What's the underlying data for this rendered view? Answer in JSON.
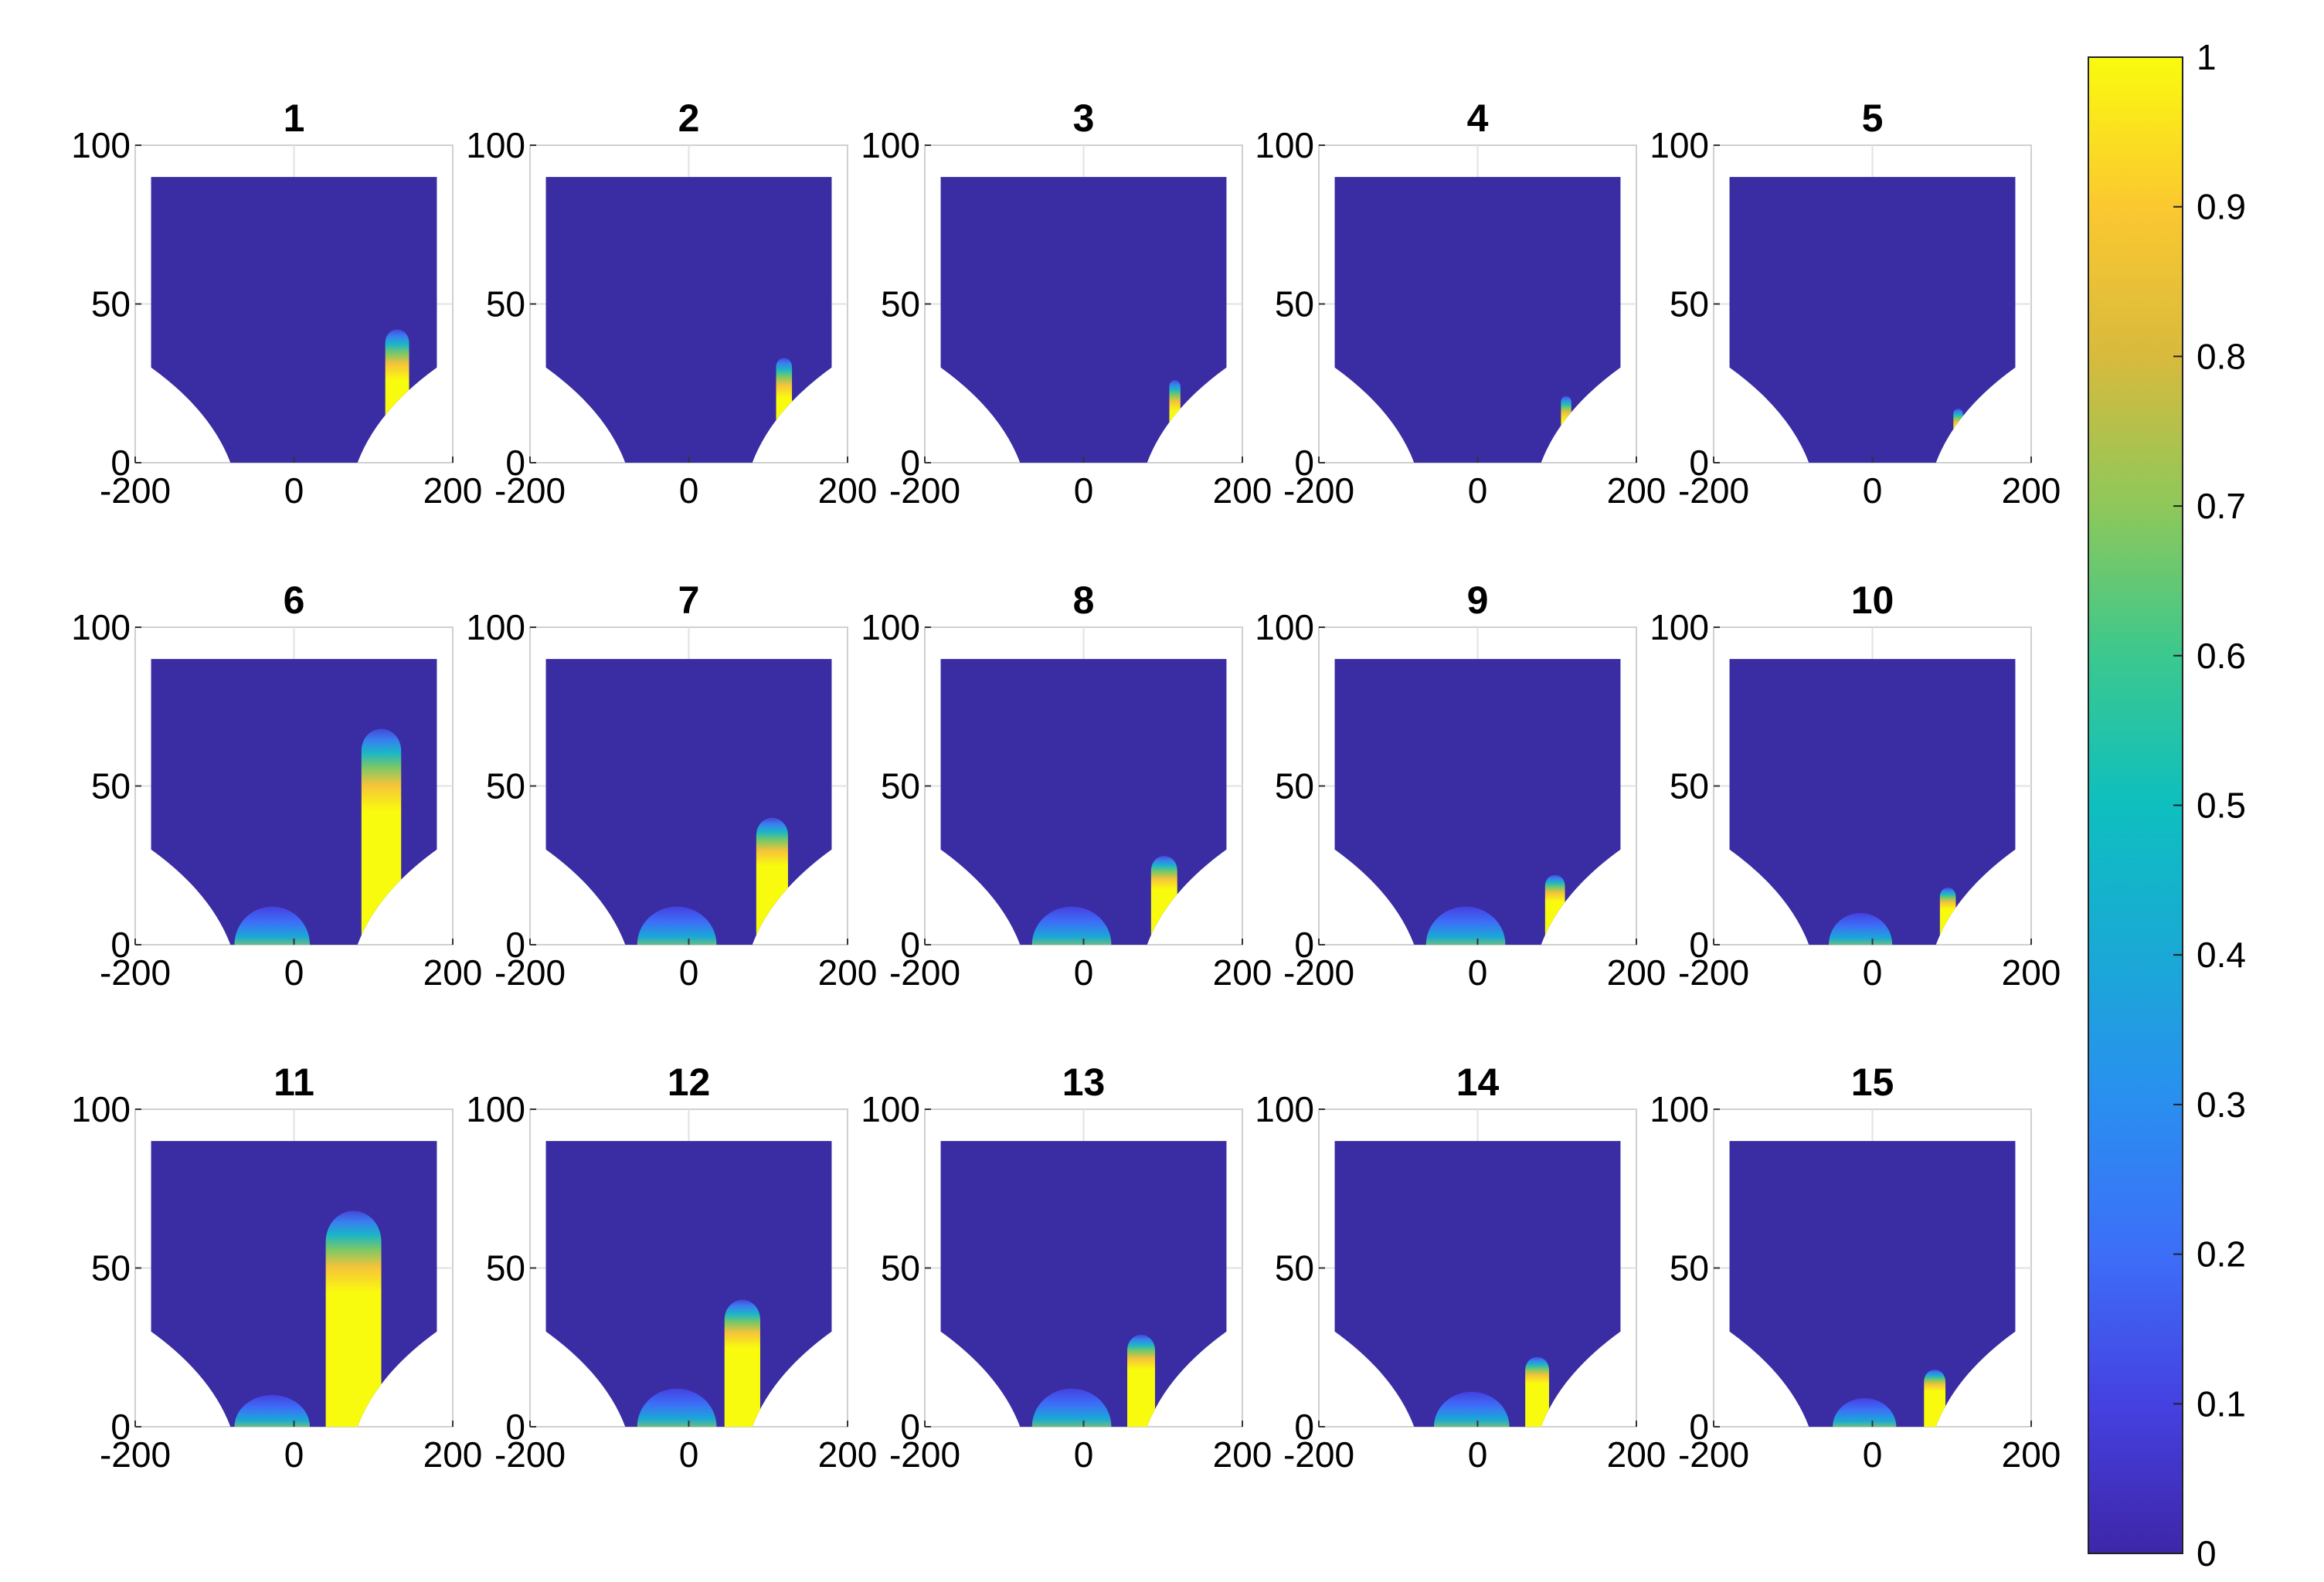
{
  "chart_data": {
    "type": "heatmap",
    "panels": [
      {
        "title": "1",
        "plume": {
          "x0": 115,
          "x1": 145,
          "ymax": 42
        }
      },
      {
        "title": "2",
        "plume": {
          "x0": 110,
          "x1": 130,
          "ymax": 33
        }
      },
      {
        "title": "3",
        "plume": {
          "x0": 108,
          "x1": 122,
          "ymax": 26
        }
      },
      {
        "title": "4",
        "plume": {
          "x0": 105,
          "x1": 118,
          "ymax": 21
        }
      },
      {
        "title": "5",
        "plume": {
          "x0": 102,
          "x1": 114,
          "ymax": 17
        }
      },
      {
        "title": "6",
        "plume": {
          "x0": 85,
          "x1": 135,
          "ymax": 68
        },
        "pool": {
          "x0": -75,
          "x1": 20,
          "ymax": 12
        }
      },
      {
        "title": "7",
        "plume": {
          "x0": 85,
          "x1": 125,
          "ymax": 40
        },
        "pool": {
          "x0": -65,
          "x1": 35,
          "ymax": 12
        }
      },
      {
        "title": "8",
        "plume": {
          "x0": 85,
          "x1": 118,
          "ymax": 28
        },
        "pool": {
          "x0": -65,
          "x1": 35,
          "ymax": 12
        }
      },
      {
        "title": "9",
        "plume": {
          "x0": 85,
          "x1": 110,
          "ymax": 22
        },
        "pool": {
          "x0": -65,
          "x1": 35,
          "ymax": 12
        }
      },
      {
        "title": "10",
        "plume": {
          "x0": 85,
          "x1": 105,
          "ymax": 18
        },
        "pool": {
          "x0": -55,
          "x1": 25,
          "ymax": 10
        }
      },
      {
        "title": "11",
        "plume": {
          "x0": 40,
          "x1": 110,
          "ymax": 68
        },
        "pool": {
          "x0": -75,
          "x1": 20,
          "ymax": 10
        }
      },
      {
        "title": "12",
        "plume": {
          "x0": 45,
          "x1": 90,
          "ymax": 40
        },
        "pool": {
          "x0": -65,
          "x1": 35,
          "ymax": 12
        }
      },
      {
        "title": "13",
        "plume": {
          "x0": 55,
          "x1": 90,
          "ymax": 29
        },
        "pool": {
          "x0": -65,
          "x1": 35,
          "ymax": 12
        }
      },
      {
        "title": "14",
        "plume": {
          "x0": 60,
          "x1": 90,
          "ymax": 22
        },
        "pool": {
          "x0": -55,
          "x1": 40,
          "ymax": 11
        }
      },
      {
        "title": "15",
        "plume": {
          "x0": 65,
          "x1": 92,
          "ymax": 18
        },
        "pool": {
          "x0": -50,
          "x1": 30,
          "ymax": 9
        }
      }
    ],
    "xlim": [
      -200,
      200
    ],
    "ylim": [
      0,
      100
    ],
    "xticks": [
      "-200",
      "0",
      "200"
    ],
    "yticks": [
      "0",
      "50",
      "100"
    ],
    "domain": {
      "xmin": -180,
      "xmax": 180,
      "ytop": 90,
      "shoulder_y": 30,
      "wall_x_bottom": 80
    },
    "colorbar": {
      "min": 0,
      "max": 1,
      "ticks": [
        "0",
        "0.1",
        "0.2",
        "0.3",
        "0.4",
        "0.5",
        "0.6",
        "0.7",
        "0.8",
        "0.9",
        "1"
      ]
    },
    "colormap": "parula",
    "colors": {
      "background": "#3a2ca3",
      "peak": "#f9fb0e"
    },
    "grid": true
  }
}
